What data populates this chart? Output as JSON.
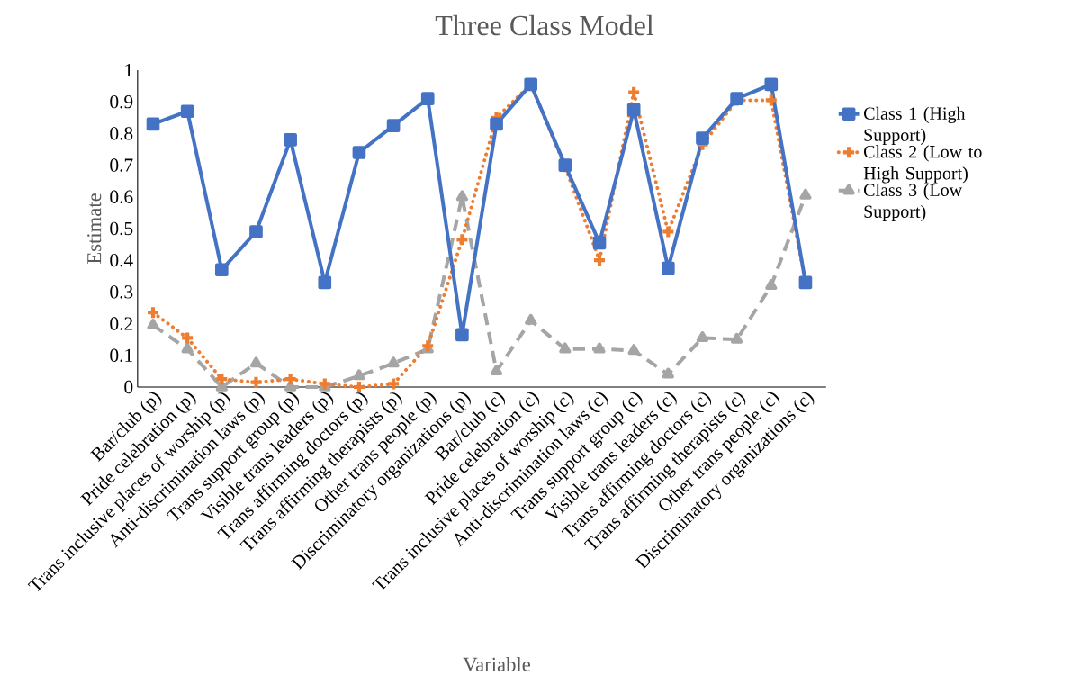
{
  "chart_data": {
    "type": "line",
    "title": "Three Class Model",
    "xlabel": "Variable",
    "ylabel": "Estimate",
    "categories": [
      "Bar/club (p)",
      "Pride celebration (p)",
      "Trans inclusive places of worship (p)",
      "Anti-discrimination laws (p)",
      "Trans support group (p)",
      "Visible trans leaders (p)",
      "Trans affirming doctors (p)",
      "Trans affirming therapists (p)",
      "Other trans people (p)",
      "Discriminatory organizations (p)",
      "Bar/club (c)",
      "Pride celebration (c)",
      "Trans inclusive places of worship (c)",
      "Anti-discrimination laws (c)",
      "Trans support group (c)",
      "Visible trans leaders (c)",
      "Trans affirming doctors (c)",
      "Trans affirming therapists (c)",
      "Other trans people (c)",
      "Discriminatory organizations (c)"
    ],
    "series": [
      {
        "name": "Class 1 (High Support)",
        "color": "#4472c4",
        "marker": "square",
        "line_style": "solid",
        "values": [
          0.83,
          0.87,
          0.37,
          0.49,
          0.78,
          0.33,
          0.74,
          0.825,
          0.91,
          0.165,
          0.83,
          0.955,
          0.7,
          0.455,
          0.875,
          0.375,
          0.785,
          0.91,
          0.955,
          0.33
        ]
      },
      {
        "name": "Class 2 (Low to High Support)",
        "color": "#ed7d31",
        "marker": "cross",
        "line_style": "dotted",
        "values": [
          0.235,
          0.155,
          0.025,
          0.015,
          0.025,
          0.01,
          0.0,
          0.01,
          0.13,
          0.465,
          0.85,
          0.955,
          0.695,
          0.4,
          0.93,
          0.49,
          0.765,
          0.905,
          0.905,
          0.33
        ]
      },
      {
        "name": "Class 3 (Low Support)",
        "color": "#a5a5a5",
        "marker": "triangle",
        "line_style": "dashed",
        "values": [
          0.195,
          0.12,
          0.0,
          0.075,
          0.0,
          0.0,
          0.035,
          0.075,
          0.12,
          0.6,
          0.05,
          0.21,
          0.12,
          0.12,
          0.115,
          0.04,
          0.155,
          0.15,
          0.32,
          0.605
        ]
      }
    ],
    "ylim": [
      0,
      1
    ],
    "yticks": [
      0,
      0.1,
      0.2,
      0.3,
      0.4,
      0.5,
      0.6,
      0.7,
      0.8,
      0.9,
      1
    ],
    "grid": false,
    "legend": "right"
  }
}
